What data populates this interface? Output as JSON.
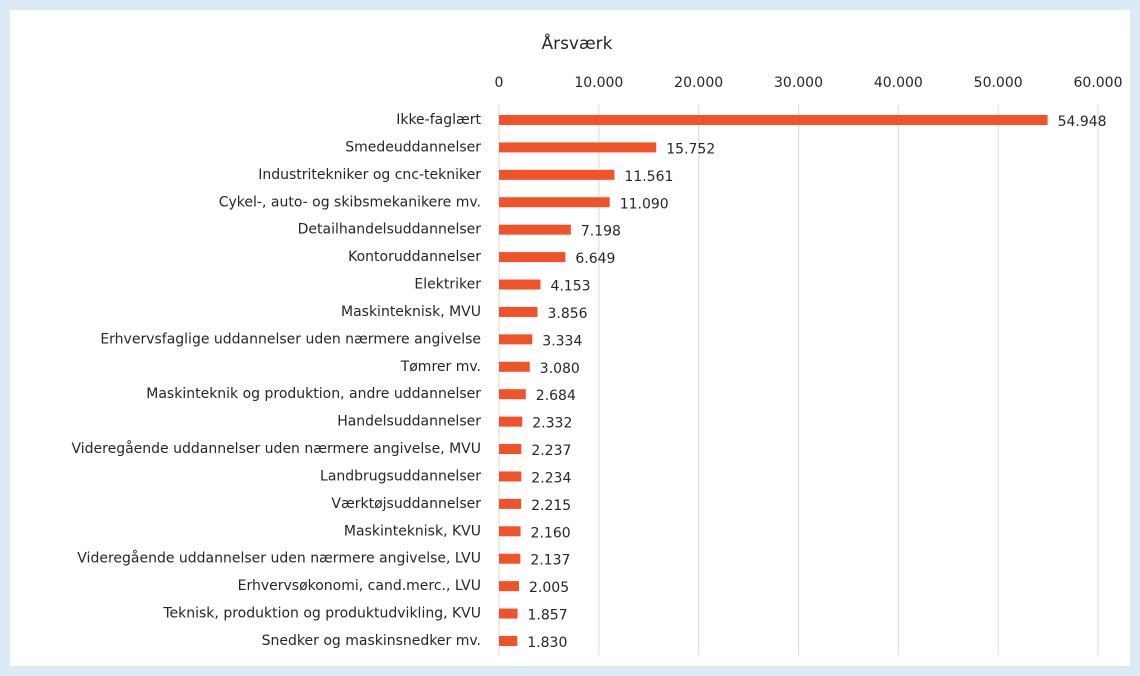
{
  "chart_data": {
    "type": "bar",
    "orientation": "horizontal",
    "x_label": "Årsværk",
    "categories": [
      "Ikke-faglært",
      "Smedeuddannelser",
      "Industritekniker og cnc-tekniker",
      "Cykel-, auto- og skibsmekanikere mv.",
      "Detailhandelsuddannelser",
      "Kontoruddannelser",
      "Elektriker",
      "Maskinteknisk, MVU",
      "Erhvervsfaglige uddannelser uden nærmere angivelse",
      "Tømrer mv.",
      "Maskinteknik og produktion, andre uddannelser",
      "Handelsuddannelser",
      "Videregående uddannelser uden nærmere angivelse, MVU",
      "Landbrugsuddannelser",
      "Værktøjsuddannelser",
      "Maskinteknisk, KVU",
      "Videregående uddannelser uden nærmere angivelse, LVU",
      "Erhvervsøkonomi, cand.merc., LVU",
      "Teknisk, produktion og produktudvikling, KVU",
      "Snedker og maskinsnedker mv."
    ],
    "values": [
      54948,
      15752,
      11561,
      11090,
      7198,
      6649,
      4153,
      3856,
      3334,
      3080,
      2684,
      2332,
      2237,
      2234,
      2215,
      2160,
      2137,
      2005,
      1857,
      1830
    ],
    "value_labels": [
      "54.948",
      "15.752",
      "11.561",
      "11.090",
      "7.198",
      "6.649",
      "4.153",
      "3.856",
      "3.334",
      "3.080",
      "2.684",
      "2.332",
      "2.237",
      "2.234",
      "2.215",
      "2.160",
      "2.137",
      "2.005",
      "1.857",
      "1.830"
    ],
    "color": "#f0522a",
    "xlim": [
      0,
      60000
    ],
    "xticks": [
      0,
      {
        "value": 10000,
        "label": "10.000"
      },
      {
        "value": 20000,
        "label": "20.000"
      },
      {
        "value": 30000,
        "label": "30.000"
      },
      {
        "value": 40000,
        "label": "40.000"
      },
      {
        "value": 50000,
        "label": "50.000"
      },
      {
        "value": 60000,
        "label": "60.000"
      }
    ],
    "grid": true
  }
}
